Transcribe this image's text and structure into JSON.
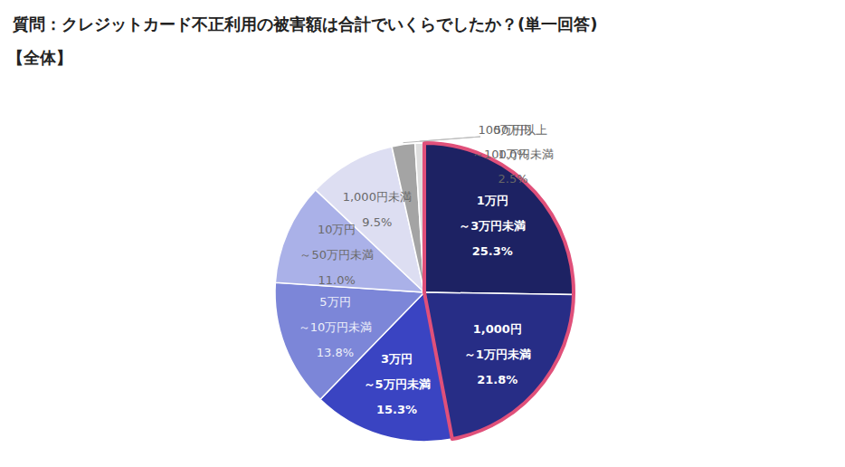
{
  "chart_data": {
    "type": "pie",
    "title": "質問：クレジットカード不正利用の被害額は合計でいくらでしたか？(単一回答)",
    "subtitle": "【全体】",
    "categories": [
      "1万円～3万円未満",
      "1,000円～1万円未満",
      "3万円～5万円未満",
      "5万円～10万円未満",
      "10万円～50万円未満",
      "1,000円未満",
      "50万円～100万円未満",
      "100万円以上"
    ],
    "values": [
      25.3,
      21.8,
      15.3,
      13.8,
      11.0,
      9.5,
      2.5,
      1.0
    ],
    "value_labels": [
      "25.3%",
      "21.8%",
      "15.3%",
      "13.8%",
      "11.0%",
      "9.5%",
      "2.5%",
      "1.0%"
    ],
    "colors": [
      "#1d2263",
      "#272d86",
      "#3a44c2",
      "#7c86d8",
      "#aab1e8",
      "#dddef2",
      "#a4a4a4",
      "#dedede"
    ],
    "data_labels": true
  }
}
